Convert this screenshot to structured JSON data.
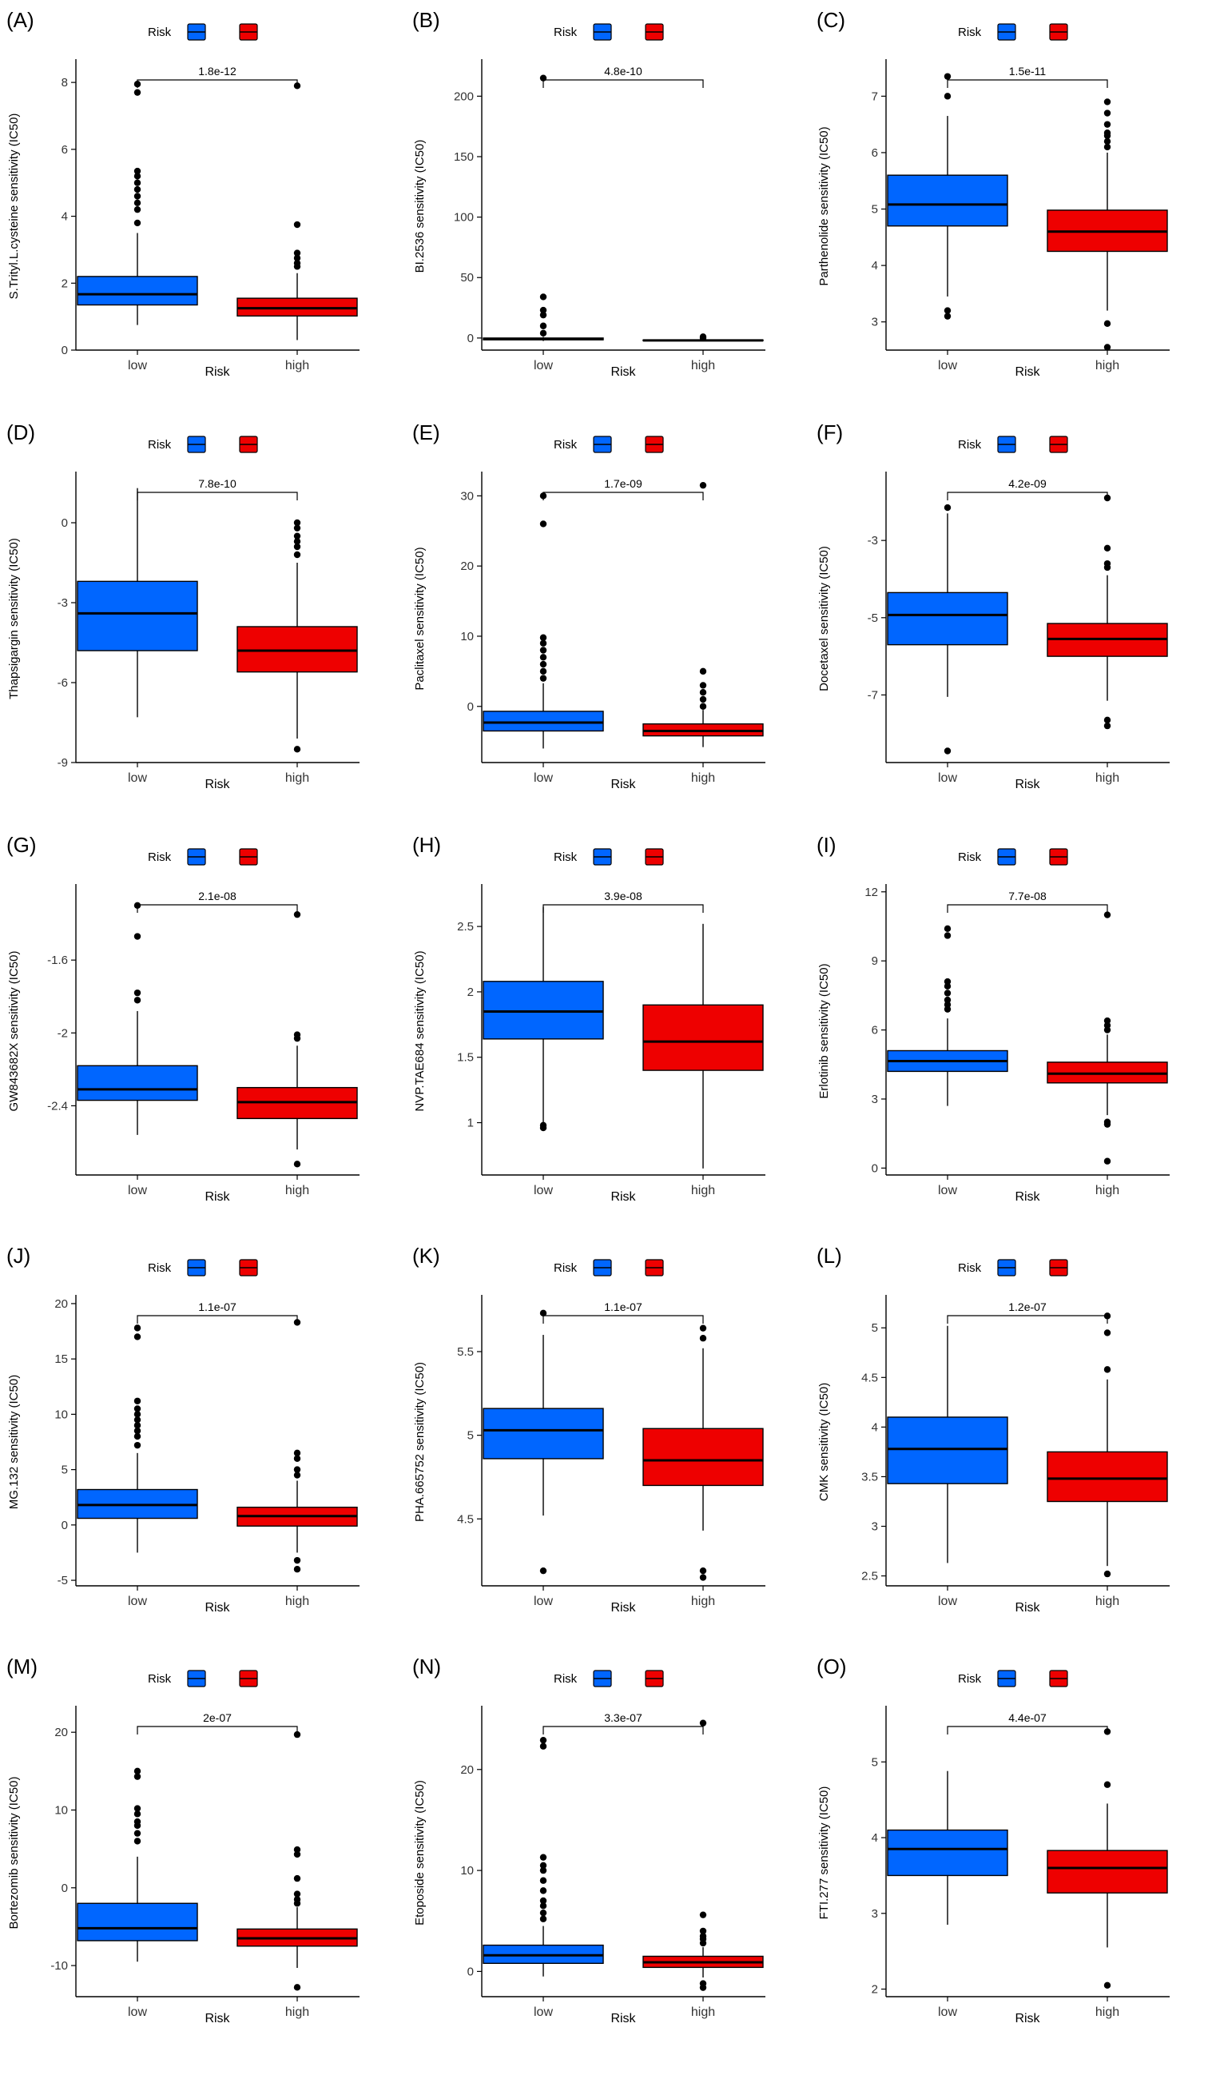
{
  "legend": {
    "title": "Risk",
    "low": "low",
    "high": "high"
  },
  "colors": {
    "low": "#0066ff",
    "high": "#ee0000",
    "axis": "#000000"
  },
  "chart_data": [
    {
      "type": "box",
      "panel_label": "(A)",
      "ylabel": "S.Trityl.L.cysteine sensitivity (IC50)",
      "xlabel": "Risk",
      "categories": [
        "low",
        "high"
      ],
      "ylim": [
        0,
        8.6
      ],
      "yticks": [
        0,
        2,
        4,
        6,
        8
      ],
      "pvalue": "1.8e-12",
      "boxes": [
        {
          "name": "low",
          "q1": 1.35,
          "median": 1.67,
          "q3": 2.2,
          "whisker_low": 0.75,
          "whisker_high": 3.5,
          "outliers": [
            3.8,
            4.2,
            4.4,
            4.6,
            4.8,
            5.0,
            5.2,
            5.35,
            7.7,
            7.95
          ]
        },
        {
          "name": "high",
          "q1": 1.02,
          "median": 1.25,
          "q3": 1.55,
          "whisker_low": 0.3,
          "whisker_high": 2.3,
          "outliers": [
            2.5,
            2.6,
            2.75,
            2.9,
            3.75,
            7.9
          ]
        }
      ]
    },
    {
      "type": "box",
      "panel_label": "(B)",
      "ylabel": "BI.2536 sensitivity (IC50)",
      "xlabel": "Risk",
      "categories": [
        "low",
        "high"
      ],
      "ylim": [
        -10,
        228
      ],
      "yticks": [
        0,
        50,
        100,
        150,
        200
      ],
      "pvalue": "4.8e-10",
      "boxes": [
        {
          "name": "low",
          "q1": -1.5,
          "median": -0.8,
          "q3": 0,
          "whisker_low": -2.5,
          "whisker_high": 1,
          "outliers": [
            4,
            10,
            19,
            23,
            34,
            215
          ]
        },
        {
          "name": "high",
          "q1": -2.3,
          "median": -2,
          "q3": -1.6,
          "whisker_low": -2.6,
          "whisker_high": -1.2,
          "outliers": [
            0,
            1
          ]
        }
      ]
    },
    {
      "type": "box",
      "panel_label": "(C)",
      "ylabel": "Parthenolide sensitivity (IC50)",
      "xlabel": "Risk",
      "categories": [
        "low",
        "high"
      ],
      "ylim": [
        2.5,
        7.6
      ],
      "yticks": [
        3,
        4,
        5,
        6,
        7
      ],
      "pvalue": "1.5e-11",
      "boxes": [
        {
          "name": "low",
          "q1": 4.7,
          "median": 5.08,
          "q3": 5.6,
          "whisker_low": 3.45,
          "whisker_high": 6.65,
          "outliers": [
            3.1,
            3.2,
            7.0,
            7.35
          ]
        },
        {
          "name": "high",
          "q1": 4.25,
          "median": 4.6,
          "q3": 4.98,
          "whisker_low": 3.2,
          "whisker_high": 6.0,
          "outliers": [
            2.55,
            2.97,
            6.1,
            6.2,
            6.3,
            6.35,
            6.5,
            6.7,
            6.9
          ]
        }
      ]
    },
    {
      "type": "box",
      "panel_label": "(D)",
      "ylabel": "Thapsigargin sensitivity (IC50)",
      "xlabel": "Risk",
      "categories": [
        "low",
        "high"
      ],
      "ylim": [
        -9,
        1.8
      ],
      "yticks": [
        -9,
        -6,
        -3,
        0
      ],
      "pvalue": "7.8e-10",
      "boxes": [
        {
          "name": "low",
          "q1": -4.8,
          "median": -3.4,
          "q3": -2.2,
          "whisker_low": -7.3,
          "whisker_high": 1.3,
          "outliers": []
        },
        {
          "name": "high",
          "q1": -5.6,
          "median": -4.8,
          "q3": -3.9,
          "whisker_low": -8.1,
          "whisker_high": -1.5,
          "outliers": [
            -8.5,
            -1.2,
            -0.9,
            -0.7,
            -0.5,
            -0.2,
            0
          ]
        }
      ]
    },
    {
      "type": "box",
      "panel_label": "(E)",
      "ylabel": "Paclitaxel sensitivity (IC50)",
      "xlabel": "Risk",
      "categories": [
        "low",
        "high"
      ],
      "ylim": [
        -8,
        33
      ],
      "yticks": [
        0,
        10,
        20,
        30
      ],
      "pvalue": "1.7e-09",
      "boxes": [
        {
          "name": "low",
          "q1": -3.5,
          "median": -2.3,
          "q3": -0.7,
          "whisker_low": -6,
          "whisker_high": 3.3,
          "outliers": [
            4,
            5,
            6,
            7,
            8,
            9,
            9.8,
            26,
            30
          ]
        },
        {
          "name": "high",
          "q1": -4.2,
          "median": -3.5,
          "q3": -2.5,
          "whisker_low": -5.8,
          "whisker_high": -0.5,
          "outliers": [
            0,
            1,
            2,
            3,
            5,
            31.5
          ]
        }
      ]
    },
    {
      "type": "box",
      "panel_label": "(F)",
      "ylabel": "Docetaxel sensitivity (IC50)",
      "xlabel": "Risk",
      "categories": [
        "low",
        "high"
      ],
      "ylim": [
        -8.75,
        -1.3
      ],
      "yticks": [
        -7,
        -5,
        -3
      ],
      "pvalue": "4.2e-09",
      "boxes": [
        {
          "name": "low",
          "q1": -5.7,
          "median": -4.93,
          "q3": -4.35,
          "whisker_low": -7.05,
          "whisker_high": -2.3,
          "outliers": [
            -8.45,
            -2.15
          ]
        },
        {
          "name": "high",
          "q1": -6.0,
          "median": -5.55,
          "q3": -5.15,
          "whisker_low": -7.15,
          "whisker_high": -3.9,
          "outliers": [
            -7.8,
            -7.65,
            -3.7,
            -3.6,
            -3.2,
            -1.9
          ]
        }
      ]
    },
    {
      "type": "box",
      "panel_label": "(G)",
      "ylabel": "GW843682X sensitivity (IC50)",
      "xlabel": "Risk",
      "categories": [
        "low",
        "high"
      ],
      "ylim": [
        -2.78,
        -1.2
      ],
      "yticks": [
        -2.4,
        -2.0,
        -1.6
      ],
      "pvalue": "2.1e-08",
      "boxes": [
        {
          "name": "low",
          "q1": -2.37,
          "median": -2.31,
          "q3": -2.18,
          "whisker_low": -2.56,
          "whisker_high": -1.88,
          "outliers": [
            -1.3,
            -1.47,
            -1.78,
            -1.82
          ]
        },
        {
          "name": "high",
          "q1": -2.47,
          "median": -2.38,
          "q3": -2.3,
          "whisker_low": -2.64,
          "whisker_high": -2.07,
          "outliers": [
            -2.72,
            -1.35,
            -2.01,
            -2.03
          ]
        }
      ]
    },
    {
      "type": "box",
      "panel_label": "(H)",
      "ylabel": "NVP.TAE684 sensitivity (IC50)",
      "xlabel": "Risk",
      "categories": [
        "low",
        "high"
      ],
      "ylim": [
        0.6,
        2.8
      ],
      "yticks": [
        1.0,
        1.5,
        2.0,
        2.5
      ],
      "pvalue": "3.9e-08",
      "boxes": [
        {
          "name": "low",
          "q1": 1.64,
          "median": 1.85,
          "q3": 2.08,
          "whisker_low": 1.0,
          "whisker_high": 2.65,
          "outliers": [
            0.96,
            0.98
          ]
        },
        {
          "name": "high",
          "q1": 1.4,
          "median": 1.62,
          "q3": 1.9,
          "whisker_low": 0.65,
          "whisker_high": 2.52,
          "outliers": []
        }
      ]
    },
    {
      "type": "box",
      "panel_label": "(I)",
      "ylabel": "Erlotinib sensitivity (IC50)",
      "xlabel": "Risk",
      "categories": [
        "low",
        "high"
      ],
      "ylim": [
        -0.3,
        12.2
      ],
      "yticks": [
        0,
        3,
        6,
        9,
        12
      ],
      "pvalue": "7.7e-08",
      "boxes": [
        {
          "name": "low",
          "q1": 4.2,
          "median": 4.65,
          "q3": 5.1,
          "whisker_low": 2.7,
          "whisker_high": 6.5,
          "outliers": [
            6.9,
            7.1,
            7.3,
            7.6,
            7.9,
            8.1,
            10.1,
            10.4
          ]
        },
        {
          "name": "high",
          "q1": 3.7,
          "median": 4.1,
          "q3": 4.6,
          "whisker_low": 2.3,
          "whisker_high": 5.8,
          "outliers": [
            0.3,
            1.9,
            2.0,
            6.0,
            6.2,
            6.4,
            11.0
          ]
        }
      ]
    },
    {
      "type": "box",
      "panel_label": "(J)",
      "ylabel": "MG.132 sensitivity (IC50)",
      "xlabel": "Risk",
      "categories": [
        "low",
        "high"
      ],
      "ylim": [
        -5.5,
        20.5
      ],
      "yticks": [
        -5,
        0,
        5,
        10,
        15,
        20
      ],
      "pvalue": "1.1e-07",
      "boxes": [
        {
          "name": "low",
          "q1": 0.6,
          "median": 1.8,
          "q3": 3.2,
          "whisker_low": -2.5,
          "whisker_high": 6.5,
          "outliers": [
            7.2,
            8,
            8.5,
            9,
            9.5,
            10,
            10.5,
            11.2,
            17,
            17.8
          ]
        },
        {
          "name": "high",
          "q1": -0.1,
          "median": 0.8,
          "q3": 1.6,
          "whisker_low": -2.5,
          "whisker_high": 4,
          "outliers": [
            -4,
            -3.2,
            4.5,
            5,
            6,
            6.5,
            18.3
          ]
        }
      ]
    },
    {
      "type": "box",
      "panel_label": "(K)",
      "ylabel": "PHA.665752 sensitivity (IC50)",
      "xlabel": "Risk",
      "categories": [
        "low",
        "high"
      ],
      "ylim": [
        4.1,
        5.82
      ],
      "yticks": [
        4.5,
        5.0,
        5.5
      ],
      "pvalue": "1.1e-07",
      "boxes": [
        {
          "name": "low",
          "q1": 4.86,
          "median": 5.03,
          "q3": 5.16,
          "whisker_low": 4.52,
          "whisker_high": 5.6,
          "outliers": [
            4.19,
            5.73
          ]
        },
        {
          "name": "high",
          "q1": 4.7,
          "median": 4.85,
          "q3": 5.04,
          "whisker_low": 4.43,
          "whisker_high": 5.52,
          "outliers": [
            4.15,
            4.19,
            5.58,
            5.64
          ]
        }
      ]
    },
    {
      "type": "box",
      "panel_label": "(L)",
      "ylabel": "CMK sensitivity (IC50)",
      "xlabel": "Risk",
      "categories": [
        "low",
        "high"
      ],
      "ylim": [
        2.4,
        5.3
      ],
      "yticks": [
        2.5,
        3.0,
        3.5,
        4.0,
        4.5,
        5.0
      ],
      "pvalue": "1.2e-07",
      "boxes": [
        {
          "name": "low",
          "q1": 3.43,
          "median": 3.78,
          "q3": 4.1,
          "whisker_low": 2.63,
          "whisker_high": 5.02,
          "outliers": []
        },
        {
          "name": "high",
          "q1": 3.25,
          "median": 3.48,
          "q3": 3.75,
          "whisker_low": 2.6,
          "whisker_high": 4.48,
          "outliers": [
            2.52,
            4.58,
            4.95,
            5.12
          ]
        }
      ]
    },
    {
      "type": "box",
      "panel_label": "(M)",
      "ylabel": "Bortezomib sensitivity (IC50)",
      "xlabel": "Risk",
      "categories": [
        "low",
        "high"
      ],
      "ylim": [
        -14,
        23
      ],
      "yticks": [
        -10,
        0,
        10,
        20
      ],
      "pvalue": "2e-07",
      "boxes": [
        {
          "name": "low",
          "q1": -6.8,
          "median": -5.2,
          "q3": -2,
          "whisker_low": -9.5,
          "whisker_high": 4,
          "outliers": [
            6,
            7,
            8,
            8.5,
            9.5,
            10.2,
            14.3,
            15
          ]
        },
        {
          "name": "high",
          "q1": -7.5,
          "median": -6.5,
          "q3": -5.3,
          "whisker_low": -10.3,
          "whisker_high": -2.5,
          "outliers": [
            -12.8,
            -2,
            -1.5,
            -0.8,
            1.2,
            4.3,
            4.9,
            19.7
          ]
        }
      ]
    },
    {
      "type": "box",
      "panel_label": "(N)",
      "ylabel": "Etoposide sensitivity (IC50)",
      "xlabel": "Risk",
      "categories": [
        "low",
        "high"
      ],
      "ylim": [
        -2.5,
        26
      ],
      "yticks": [
        0,
        10,
        20
      ],
      "pvalue": "3.3e-07",
      "boxes": [
        {
          "name": "low",
          "q1": 0.8,
          "median": 1.6,
          "q3": 2.6,
          "whisker_low": -0.5,
          "whisker_high": 4.5,
          "outliers": [
            5.2,
            5.8,
            6.5,
            7,
            8,
            9,
            10,
            10.5,
            11.3,
            22.3,
            22.9
          ]
        },
        {
          "name": "high",
          "q1": 0.4,
          "median": 0.9,
          "q3": 1.5,
          "whisker_low": -0.6,
          "whisker_high": 2.4,
          "outliers": [
            -1.6,
            -1.2,
            2.8,
            3.2,
            3.5,
            4,
            5.6,
            24.6
          ]
        }
      ]
    },
    {
      "type": "box",
      "panel_label": "(O)",
      "ylabel": "FTI.277 sensitivity (IC50)",
      "xlabel": "Risk",
      "categories": [
        "low",
        "high"
      ],
      "ylim": [
        1.9,
        5.7
      ],
      "yticks": [
        2,
        3,
        4,
        5
      ],
      "pvalue": "4.4e-07",
      "boxes": [
        {
          "name": "low",
          "q1": 3.5,
          "median": 3.85,
          "q3": 4.1,
          "whisker_low": 2.85,
          "whisker_high": 4.88,
          "outliers": []
        },
        {
          "name": "high",
          "q1": 3.27,
          "median": 3.6,
          "q3": 3.83,
          "whisker_low": 2.55,
          "whisker_high": 4.45,
          "outliers": [
            2.05,
            4.7,
            5.4
          ]
        }
      ]
    }
  ]
}
